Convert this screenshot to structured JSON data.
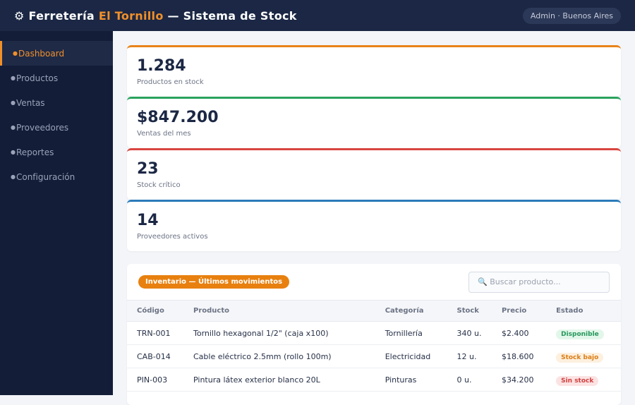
{
  "header": {
    "icon": "⚙",
    "title_start": "Ferretería",
    "title_accent": "El Tornillo",
    "title_end": "— Sistema de Stock",
    "user": "Admin · Buenos Aires"
  },
  "sidebar": {
    "bullet": "●",
    "items": [
      "Dashboard",
      "Productos",
      "Ventas",
      "Proveedores",
      "Reportes",
      "Configuración"
    ]
  },
  "stats": [
    {
      "value": "1.284",
      "label": "Productos en stock"
    },
    {
      "value": "$847.200",
      "label": "Ventas del mes"
    },
    {
      "value": "23",
      "label": "Stock crítico"
    },
    {
      "value": "14",
      "label": "Proveedores activos"
    }
  ],
  "inventory": {
    "title": "Inventario — Últimos movimientos",
    "search_placeholder": "🔍 Buscar producto...",
    "columns": [
      "Código",
      "Producto",
      "Categoría",
      "Stock",
      "Precio",
      "Estado"
    ],
    "rows": [
      [
        "TRN-001",
        "Tornillo hexagonal 1/2\" (caja x100)",
        "Tornillería",
        "340 u.",
        "$2.400",
        "Disponible"
      ],
      [
        "CAB-014",
        "Cable eléctrico 2.5mm (rollo 100m)",
        "Electricidad",
        "12 u.",
        "$18.600",
        "Stock bajo"
      ],
      [
        "PIN-003",
        "Pintura látex exterior blanco 20L",
        "Pinturas",
        "0 u.",
        "$34.200",
        "Sin stock"
      ]
    ]
  }
}
